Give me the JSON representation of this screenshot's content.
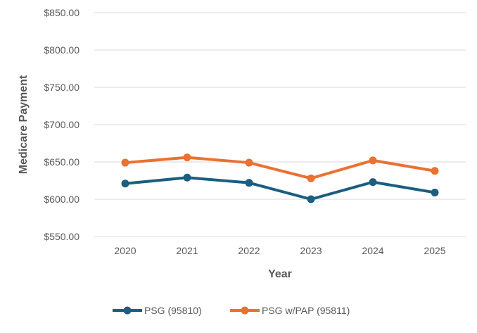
{
  "chart_data": {
    "type": "line",
    "title": "",
    "xlabel": "Year",
    "ylabel": "Medicare Payment",
    "categories": [
      "2020",
      "2021",
      "2022",
      "2023",
      "2024",
      "2025"
    ],
    "ylim": [
      550,
      850
    ],
    "yticks": [
      550,
      600,
      650,
      700,
      750,
      800,
      850
    ],
    "ytick_labels": [
      "$550.00",
      "$600.00",
      "$650.00",
      "$700.00",
      "$750.00",
      "$800.00",
      "$850.00"
    ],
    "grid": true,
    "legend_position": "bottom",
    "series": [
      {
        "name": "PSG (95810)",
        "color": "#1a5e80",
        "values": [
          621,
          629,
          622,
          600,
          623,
          609
        ]
      },
      {
        "name": "PSG w/PAP (95811)",
        "color": "#e97132",
        "values": [
          649,
          656,
          649,
          628,
          652,
          638
        ]
      }
    ]
  }
}
